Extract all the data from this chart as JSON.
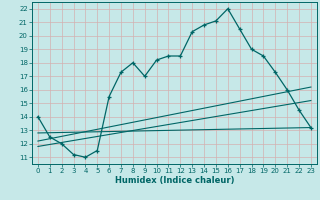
{
  "xlabel": "Humidex (Indice chaleur)",
  "xlim": [
    -0.5,
    23.5
  ],
  "ylim": [
    10.5,
    22.5
  ],
  "xticks": [
    0,
    1,
    2,
    3,
    4,
    5,
    6,
    7,
    8,
    9,
    10,
    11,
    12,
    13,
    14,
    15,
    16,
    17,
    18,
    19,
    20,
    21,
    22,
    23
  ],
  "yticks": [
    11,
    12,
    13,
    14,
    15,
    16,
    17,
    18,
    19,
    20,
    21,
    22
  ],
  "bg_color": "#c6e8e8",
  "grid_color": "#aed4d4",
  "line_color": "#006666",
  "main_x": [
    0,
    1,
    2,
    3,
    4,
    5,
    6,
    7,
    8,
    9,
    10,
    11,
    12,
    13,
    14,
    15,
    16,
    17,
    18,
    19,
    20,
    21,
    22,
    23
  ],
  "main_y": [
    14.0,
    12.5,
    12.0,
    11.2,
    11.0,
    11.5,
    15.5,
    17.3,
    18.0,
    17.0,
    18.2,
    18.5,
    18.5,
    20.3,
    20.8,
    21.1,
    22.0,
    20.5,
    19.0,
    18.5,
    17.3,
    16.0,
    14.5,
    13.2
  ],
  "line2_x": [
    0,
    23
  ],
  "line2_y": [
    12.2,
    16.2
  ],
  "line3_x": [
    0,
    23
  ],
  "line3_y": [
    11.8,
    15.2
  ],
  "line4_x": [
    0,
    23
  ],
  "line4_y": [
    12.8,
    13.2
  ]
}
